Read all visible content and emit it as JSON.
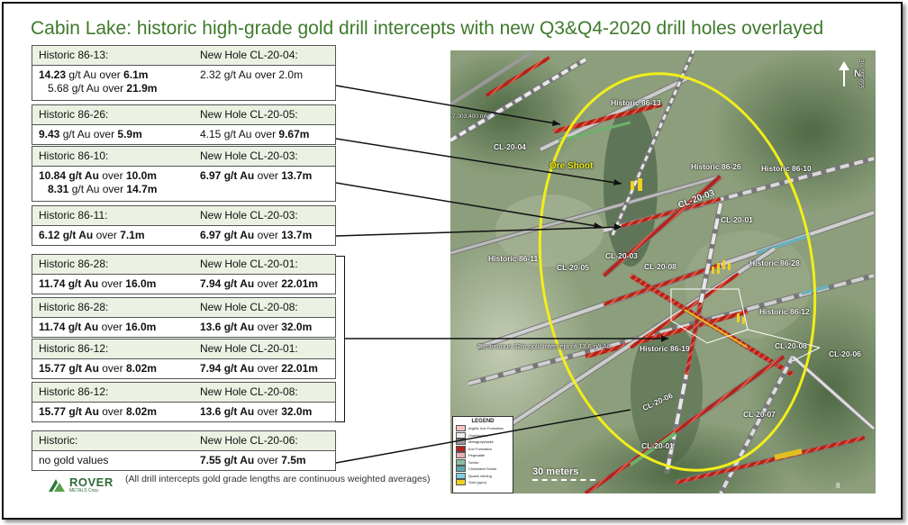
{
  "title": "Cabin Lake: historic high-grade gold drill intercepts with new Q3&Q4-2020 drill holes overlayed",
  "boxes": [
    {
      "h1": "Historic 86-13:",
      "h2": "New Hole CL-20-04:",
      "rows": [
        [
          {
            "v": "14.23",
            "u": " g/t Au over ",
            "l": "6.1m"
          },
          {
            "v": "2.32 g/t Au over 2.0m",
            "plain": true
          }
        ],
        [
          {
            "v": "5.68",
            "u": " g/t Au over ",
            "l": "21.9m",
            "indent": true,
            "plainv": true
          },
          null
        ]
      ]
    },
    {
      "h1": "Historic 86-26:",
      "h2": "New Hole CL-20-05:",
      "rows": [
        [
          {
            "v": "9.43",
            "u": " g/t Au over ",
            "l": "5.9m"
          },
          {
            "v": "4.15",
            "u": " g/t Au over ",
            "l": "9.67m",
            "plainv": true
          }
        ]
      ]
    },
    {
      "h1": "Historic 86-10:",
      "h2": "New Hole CL-20-03:",
      "rows": [
        [
          {
            "v": "10.84 g/t Au",
            "u": " over ",
            "l": "10.0m"
          },
          {
            "v": "6.97 g/t Au",
            "u": " over ",
            "l": "13.7m"
          }
        ],
        [
          {
            "v": "8.31",
            "u": " g/t Au over ",
            "l": "14.7m",
            "indent": true
          },
          null
        ]
      ]
    },
    {
      "h1": "Historic 86-11:",
      "h2": "New Hole CL-20-03:",
      "rows": [
        [
          {
            "v": "6.12 g/t Au",
            "u": " over ",
            "l": "7.1m"
          },
          {
            "v": "6.97 g/t Au",
            "u": " over ",
            "l": "13.7m"
          }
        ]
      ]
    },
    {
      "h1": "Historic 86-28:",
      "h2": "New Hole CL-20-01:",
      "rows": [
        [
          {
            "v": "11.74 g/t Au",
            "u": " over ",
            "l": "16.0m"
          },
          {
            "v": "7.94 g/t Au",
            "u": " over ",
            "l": "22.01m"
          }
        ]
      ]
    },
    {
      "h1": "Historic 86-28:",
      "h2": "New Hole CL-20-08:",
      "rows": [
        [
          {
            "v": "11.74 g/t Au",
            "u": " over ",
            "l": "16.0m"
          },
          {
            "v": "13.6 g/t Au",
            "u": " over ",
            "l": "32.0m"
          }
        ]
      ]
    },
    {
      "h1": "Historic 86-12:",
      "h2": "New Hole CL-20-01:",
      "rows": [
        [
          {
            "v": "15.77 g/t Au",
            "u": " over ",
            "l": "8.02m"
          },
          {
            "v": "7.94 g/t Au",
            "u": " over ",
            "l": "22.01m"
          }
        ]
      ]
    },
    {
      "h1": "Historic 86-12:",
      "h2": "New Hole CL-20-08:",
      "rows": [
        [
          {
            "v": "15.77 g/t Au",
            "u": " over ",
            "l": "8.02m"
          },
          {
            "v": "13.6 g/t Au",
            "u": " over ",
            "l": "32.0m"
          }
        ]
      ]
    },
    {
      "h1": "Historic:",
      "h2": "New Hole CL-20-06:",
      "rows": [
        [
          {
            "v": "no gold values",
            "plain": true
          },
          {
            "v": "7.55 g/t Au",
            "u": " over ",
            "l": "7.5m"
          }
        ]
      ]
    }
  ],
  "map": {
    "labels": {
      "h8613": "Historic 86-13",
      "cl2004": "CL-20-04",
      "ore": "Ore Shoot",
      "h8626": "Historic 86-26",
      "h8610": "Historic 86-10",
      "cl2003a": "CL-20-03",
      "cl2001a": "CL-20-01",
      "h8611": "Historic 86-11",
      "cl2003b": "CL-20-03",
      "cl2005": "CL-20-05",
      "cl2008a": "CL-20-08",
      "h8628": "Historic 86-28",
      "h8612": "Historic 86-12",
      "h8619": "Historic 86-19",
      "cl2008b": "CL-20-08",
      "cl2006a": "CL-20-06",
      "cl2006b": "CL-20-06",
      "cl2007": "CL-20-07",
      "cl2001b": "CL-20-01",
      "continuous": "Continuous 32m gold intercept of 13.6 g/t Au",
      "north": "N",
      "easting": "559,350 mE",
      "northing": "7,003,400 mN"
    },
    "scale": "30 meters",
    "legend": {
      "title": "LEGEND",
      "items": [
        "Argillic Iron Formation",
        "Overburden",
        "Metagreywacke",
        "Iron Formation",
        "Pegmatite",
        "Schist",
        "Chloritized Schist",
        "Quartz veining",
        "Gold (ppm)"
      ]
    }
  },
  "footer": {
    "logo": "ROVER",
    "logo_sub": "METALS Corp.",
    "note": "(All drill intercepts gold grade lengths are continuous weighted averages)",
    "page": "8"
  },
  "colors": {
    "title": "#3e7a2c",
    "ellipse": "#f2ee1a",
    "box_header": "#ebf2e4"
  }
}
